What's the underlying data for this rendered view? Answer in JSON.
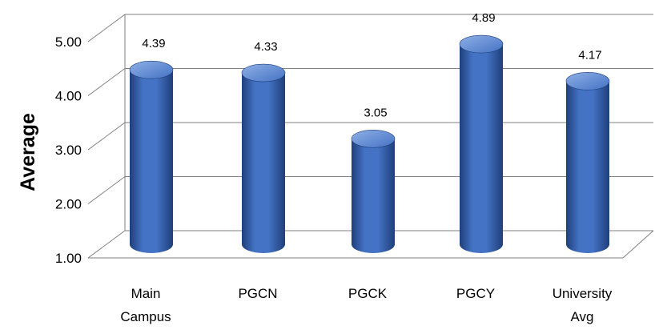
{
  "chart_data": {
    "type": "bar",
    "style": "3d-cylinder",
    "categories": [
      "Main Campus",
      "PGCN",
      "PGCK",
      "PGCY",
      "University Avg"
    ],
    "category_lines": [
      [
        "Main",
        "Campus"
      ],
      [
        "PGCN"
      ],
      [
        "PGCK"
      ],
      [
        "PGCY"
      ],
      [
        "University",
        "Avg"
      ]
    ],
    "values": [
      4.39,
      4.33,
      3.05,
      4.89,
      4.17
    ],
    "data_labels": [
      "4.39",
      "4.33",
      "3.05",
      "4.89",
      "4.17"
    ],
    "ylabel": "Average",
    "xlabel": "",
    "ylim": [
      1.0,
      5.0
    ],
    "yticks": [
      "1.00",
      "2.00",
      "3.00",
      "4.00",
      "5.00"
    ],
    "grid": true,
    "legend": "none",
    "colors": {
      "bar": "#4472C4",
      "bar_dark": "#1F3F7A",
      "bar_light": "#8FB0E6",
      "grid": "#7F7F7F"
    }
  }
}
